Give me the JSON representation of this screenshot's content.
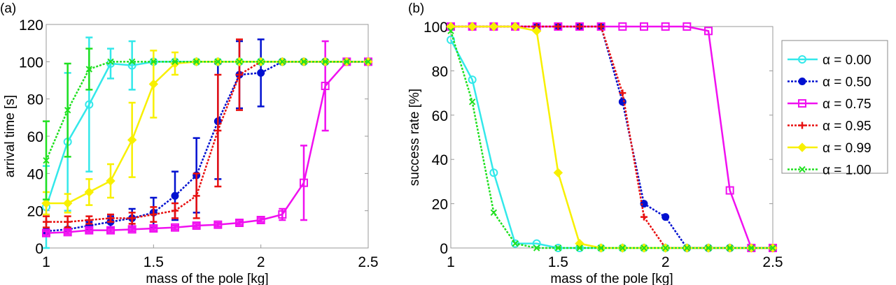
{
  "chart_data": [
    {
      "type": "line",
      "panel_label": "(a)",
      "xlabel": "mass of the pole [kg]",
      "ylabel": "arrival time [s]",
      "xlim": [
        1,
        2.5
      ],
      "ylim": [
        0,
        120
      ],
      "xticks": [
        "1",
        "1.5",
        "2",
        "2.5"
      ],
      "yticks": [
        "0",
        "20",
        "40",
        "60",
        "80",
        "100",
        "120"
      ],
      "x": [
        1.0,
        1.1,
        1.2,
        1.3,
        1.4,
        1.5,
        1.6,
        1.7,
        1.8,
        1.9,
        2.0,
        2.1,
        2.2,
        2.3,
        2.4,
        2.5
      ],
      "series": [
        {
          "name": "α = 0.00",
          "values": [
            22,
            57,
            77,
            99,
            98,
            100,
            100,
            100,
            100,
            100,
            100,
            100,
            100,
            100,
            100,
            100
          ],
          "err": [
            22,
            37,
            36,
            8,
            13,
            0,
            0,
            0,
            0,
            0,
            0,
            0,
            0,
            0,
            0,
            0
          ]
        },
        {
          "name": "α = 0.50",
          "values": [
            9,
            10,
            12,
            14,
            16,
            19,
            28,
            39,
            68,
            93,
            94,
            100,
            100,
            100,
            100,
            100
          ],
          "err": [
            1,
            1,
            2,
            3,
            5,
            8,
            13,
            20,
            31,
            18,
            18,
            0,
            0,
            0,
            0,
            0
          ]
        },
        {
          "name": "α = 0.75",
          "values": [
            8,
            8.5,
            9.5,
            9.5,
            10,
            10.5,
            11,
            12,
            12.5,
            13.5,
            15,
            18,
            35,
            87,
            100,
            100
          ],
          "err": [
            1,
            1,
            1,
            1,
            1,
            1,
            1,
            1,
            1,
            1,
            1,
            3,
            20,
            24,
            0,
            0
          ]
        },
        {
          "name": "α = 0.95",
          "values": [
            14,
            14,
            15,
            16,
            16,
            18,
            20,
            28,
            63,
            93,
            100,
            100,
            100,
            100,
            100,
            100
          ],
          "err": [
            3,
            3,
            2,
            2,
            3,
            4,
            4,
            12,
            30,
            19,
            0,
            0,
            0,
            0,
            0,
            0
          ]
        },
        {
          "name": "α = 0.99",
          "values": [
            24,
            24,
            30,
            36,
            58,
            88,
            99,
            100,
            100,
            100,
            100,
            100,
            100,
            100,
            100,
            100
          ],
          "err": [
            6,
            5,
            7,
            9,
            20,
            18,
            6,
            0,
            0,
            0,
            0,
            0,
            0,
            0,
            0,
            0
          ]
        },
        {
          "name": "α = 1.00",
          "values": [
            47,
            74,
            96,
            100,
            100,
            100,
            100,
            100,
            100,
            100,
            100,
            100,
            100,
            100,
            100,
            100
          ],
          "err": [
            21,
            25,
            11,
            0,
            0,
            0,
            0,
            0,
            0,
            0,
            0,
            0,
            0,
            0,
            0,
            0
          ]
        }
      ]
    },
    {
      "type": "line",
      "panel_label": "(b)",
      "xlabel": "mass of the pole [kg]",
      "ylabel": "success rate [%]",
      "xlim": [
        1,
        2.5
      ],
      "ylim": [
        0,
        100
      ],
      "xticks": [
        "1",
        "1.5",
        "2",
        "2.5"
      ],
      "yticks": [
        "0",
        "20",
        "40",
        "60",
        "80",
        "100"
      ],
      "x": [
        1.0,
        1.1,
        1.2,
        1.3,
        1.4,
        1.5,
        1.6,
        1.7,
        1.8,
        1.9,
        2.0,
        2.1,
        2.2,
        2.3,
        2.4,
        2.5
      ],
      "legend_position": "outside-right",
      "series": [
        {
          "name": "α = 0.00",
          "values": [
            94,
            76,
            34,
            2,
            2,
            0,
            0,
            0,
            0,
            0,
            0,
            0,
            0,
            0,
            0,
            0
          ]
        },
        {
          "name": "α = 0.50",
          "values": [
            100,
            100,
            100,
            100,
            100,
            100,
            100,
            100,
            66,
            20,
            14,
            0,
            0,
            0,
            0,
            0
          ]
        },
        {
          "name": "α = 0.75",
          "values": [
            100,
            100,
            100,
            100,
            100,
            100,
            100,
            100,
            100,
            100,
            100,
            100,
            98,
            26,
            0,
            0
          ]
        },
        {
          "name": "α = 0.95",
          "values": [
            100,
            100,
            100,
            100,
            100,
            100,
            100,
            100,
            70,
            14,
            0,
            0,
            0,
            0,
            0,
            0
          ]
        },
        {
          "name": "α = 0.99",
          "values": [
            100,
            100,
            100,
            100,
            98,
            34,
            2,
            0,
            0,
            0,
            0,
            0,
            0,
            0,
            0,
            0
          ]
        },
        {
          "name": "α = 1.00",
          "values": [
            98,
            66,
            16,
            2,
            0,
            0,
            0,
            0,
            0,
            0,
            0,
            0,
            0,
            0,
            0,
            0
          ]
        }
      ]
    }
  ],
  "styles": [
    {
      "color": "#33e8ea",
      "dash": false,
      "marker": "circle"
    },
    {
      "color": "#0010d0",
      "dash": true,
      "marker": "dot"
    },
    {
      "color": "#f010f0",
      "dash": false,
      "marker": "square"
    },
    {
      "color": "#e81010",
      "dash": true,
      "marker": "plus"
    },
    {
      "color": "#f8f000",
      "dash": false,
      "marker": "diamond"
    },
    {
      "color": "#20e020",
      "dash": true,
      "marker": "x"
    }
  ]
}
